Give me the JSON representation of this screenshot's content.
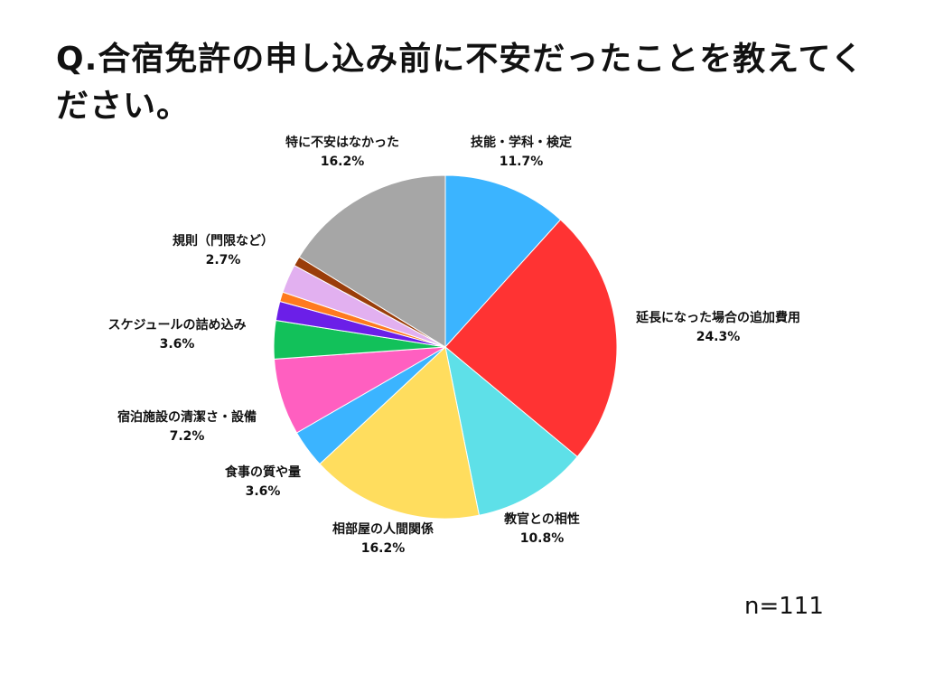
{
  "title": "Q.合宿免許の申し込み前に不安だったことを教えてください。",
  "n_label": "n=111",
  "chart_data": {
    "type": "pie",
    "slices": [
      {
        "label": "技能・学科・検定",
        "value": 11.7,
        "value_label": "11.7%",
        "color": "#3bb4ff",
        "show_label": true
      },
      {
        "label": "延長になった場合の追加費用",
        "value": 24.3,
        "value_label": "24.3%",
        "color": "#ff3333",
        "show_label": true
      },
      {
        "label": "教官との相性",
        "value": 10.8,
        "value_label": "10.8%",
        "color": "#5ee0e8",
        "show_label": true
      },
      {
        "label": "相部屋の人間関係",
        "value": 16.2,
        "value_label": "16.2%",
        "color": "#ffdd5e",
        "show_label": true
      },
      {
        "label": "食事の質や量",
        "value": 3.6,
        "value_label": "3.6%",
        "color": "#3bb4ff",
        "show_label": true
      },
      {
        "label": "宿泊施設の清潔さ・設備",
        "value": 7.2,
        "value_label": "7.2%",
        "color": "#ff5fc0",
        "show_label": true
      },
      {
        "label": "スケジュールの詰め込み",
        "value": 3.6,
        "value_label": "3.6%",
        "color": "#12c15a",
        "show_label": true
      },
      {
        "label": "",
        "value": 1.8,
        "value_label": "",
        "color": "#6b1fe8",
        "show_label": false
      },
      {
        "label": "",
        "value": 0.9,
        "value_label": "",
        "color": "#ff7a1f",
        "show_label": false
      },
      {
        "label": "規則（門限など）",
        "value": 2.7,
        "value_label": "2.7%",
        "color": "#e2b0f0",
        "show_label": true
      },
      {
        "label": "",
        "value": 0.9,
        "value_label": "",
        "color": "#9a3d0a",
        "show_label": false
      },
      {
        "label": "特に不安はなかった",
        "value": 16.2,
        "value_label": "16.2%",
        "color": "#a6a6a6",
        "show_label": true
      }
    ]
  }
}
